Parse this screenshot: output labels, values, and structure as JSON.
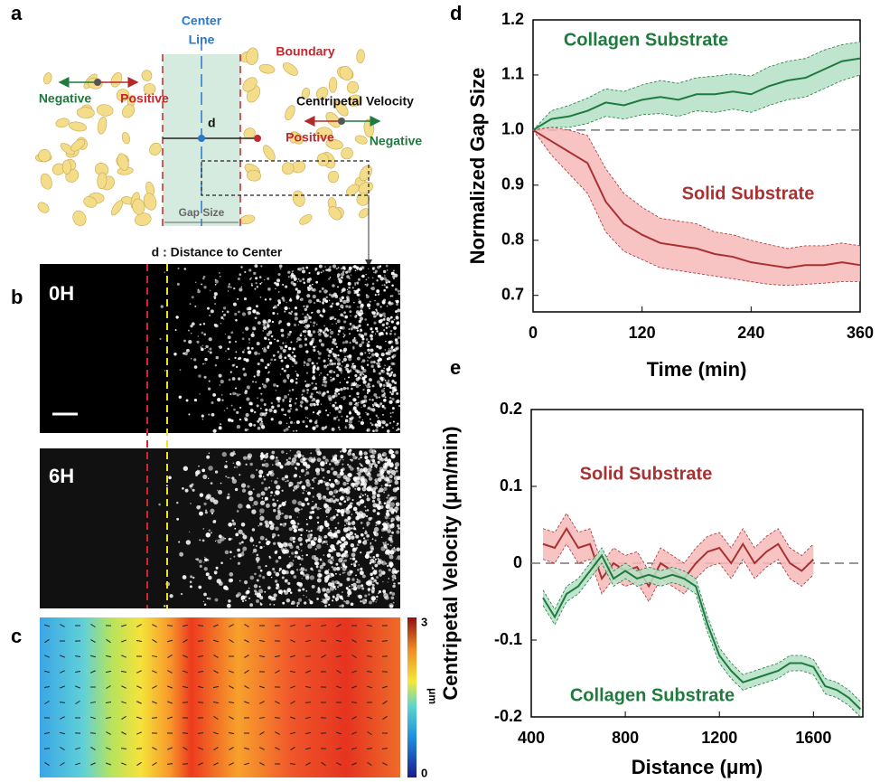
{
  "panels": {
    "a": "a",
    "b": "b",
    "c": "c",
    "d": "d",
    "e": "e"
  },
  "diagram": {
    "center_line": [
      "Center",
      "Line"
    ],
    "boundary": "Boundary",
    "negative_left": "Negative",
    "positive_left": "Positive",
    "centripetal_velocity": "Centripetal Velocity",
    "d": "d",
    "positive_right": "Positive",
    "negative_right": "Negative",
    "gap_size": "Gap Size",
    "distance_caption": "d : Distance to Center"
  },
  "images": {
    "top": "0H",
    "bottom": "6H"
  },
  "colorbar": {
    "ticks": [
      0,
      3
    ],
    "label": "μm"
  },
  "chart_data": [
    {
      "type": "line",
      "xlabel": "Time (min)",
      "ylabel": "Normalized Gap Size",
      "x": [
        0,
        20,
        40,
        60,
        80,
        100,
        120,
        140,
        160,
        180,
        200,
        220,
        240,
        260,
        280,
        300,
        320,
        340,
        360
      ],
      "xlim": [
        0,
        360
      ],
      "xticks": [
        0,
        120,
        240,
        360
      ],
      "ylim": [
        0.67,
        1.2
      ],
      "yticks": [
        0.7,
        0.8,
        0.9,
        {
          "value": 1,
          "label": "1.0"
        },
        1.1,
        1.2
      ],
      "reference_line": 1,
      "series": [
        {
          "name": "Collagen Substrate",
          "color": "#1f7a3e",
          "band_color": "#b5e0c6",
          "values": [
            1.0,
            1.02,
            1.025,
            1.035,
            1.05,
            1.045,
            1.055,
            1.06,
            1.055,
            1.065,
            1.065,
            1.07,
            1.065,
            1.08,
            1.09,
            1.095,
            1.11,
            1.125,
            1.13
          ],
          "lower": [
            1.0,
            1.005,
            1.005,
            1.012,
            1.025,
            1.02,
            1.028,
            1.03,
            1.025,
            1.035,
            1.032,
            1.038,
            1.032,
            1.045,
            1.055,
            1.06,
            1.075,
            1.09,
            1.1
          ],
          "upper": [
            1.0,
            1.035,
            1.045,
            1.058,
            1.075,
            1.07,
            1.082,
            1.09,
            1.085,
            1.095,
            1.098,
            1.102,
            1.098,
            1.115,
            1.125,
            1.13,
            1.145,
            1.155,
            1.16
          ]
        },
        {
          "name": "Solid Substrate",
          "color": "#a83232",
          "band_color": "#f6b8b8",
          "values": [
            1.0,
            0.98,
            0.96,
            0.94,
            0.87,
            0.83,
            0.81,
            0.795,
            0.79,
            0.785,
            0.775,
            0.77,
            0.76,
            0.755,
            0.75,
            0.755,
            0.755,
            0.76,
            0.755
          ],
          "lower": [
            1.0,
            0.955,
            0.92,
            0.885,
            0.815,
            0.78,
            0.765,
            0.75,
            0.745,
            0.74,
            0.735,
            0.73,
            0.725,
            0.72,
            0.718,
            0.72,
            0.722,
            0.725,
            0.725
          ],
          "upper": [
            1.0,
            1.005,
            1.0,
            0.99,
            0.93,
            0.885,
            0.86,
            0.84,
            0.835,
            0.83,
            0.815,
            0.81,
            0.8,
            0.792,
            0.785,
            0.79,
            0.79,
            0.795,
            0.79
          ]
        }
      ]
    },
    {
      "type": "line",
      "xlabel": "Distance (μm)",
      "ylabel": "Centripetal Velocity (μm/min)",
      "x": [
        450,
        500,
        550,
        600,
        650,
        700,
        750,
        800,
        850,
        900,
        950,
        1000,
        1050,
        1100,
        1150,
        1200,
        1250,
        1300,
        1350,
        1400,
        1450,
        1500,
        1550,
        1600,
        1650,
        1700,
        1750,
        1800
      ],
      "xlim": [
        400,
        1810
      ],
      "xticks": [
        400,
        800,
        1200,
        1600
      ],
      "ylim": [
        -0.2,
        0.2
      ],
      "yticks": [
        -0.2,
        -0.1,
        0,
        0.1,
        0.2
      ],
      "reference_line": 0,
      "series": [
        {
          "name": "Solid Substrate",
          "color": "#a83232",
          "band_color": "#f6b8b8",
          "values": [
            0.025,
            0.02,
            0.045,
            0.02,
            0.025,
            -0.02,
            0.0,
            -0.01,
            -0.005,
            -0.03,
            0.0,
            -0.01,
            -0.02,
            0.0,
            0.015,
            0.02,
            0.0,
            0.025,
            0.0,
            0.015,
            0.025,
            0.0,
            -0.01,
            0.005,
            null,
            null,
            null,
            null
          ],
          "lower": [
            0.005,
            0.0,
            0.025,
            0.0,
            0.005,
            -0.04,
            -0.02,
            -0.03,
            -0.025,
            -0.05,
            -0.02,
            -0.03,
            -0.04,
            -0.02,
            -0.005,
            0.0,
            -0.02,
            0.005,
            -0.02,
            -0.005,
            0.005,
            -0.02,
            -0.03,
            -0.015,
            null,
            null,
            null,
            null
          ],
          "upper": [
            0.045,
            0.04,
            0.065,
            0.04,
            0.045,
            0.0,
            0.02,
            0.01,
            0.015,
            -0.01,
            0.02,
            0.01,
            0.0,
            0.02,
            0.035,
            0.04,
            0.02,
            0.045,
            0.02,
            0.035,
            0.045,
            0.02,
            0.01,
            0.025,
            null,
            null,
            null,
            null
          ]
        },
        {
          "name": "Collagen Substrate",
          "color": "#1f7a3e",
          "band_color": "#b5e0c6",
          "values": [
            -0.045,
            -0.07,
            -0.04,
            -0.03,
            -0.01,
            0.01,
            -0.02,
            -0.01,
            -0.02,
            -0.015,
            -0.02,
            -0.015,
            -0.02,
            -0.03,
            -0.08,
            -0.12,
            -0.14,
            -0.155,
            -0.15,
            -0.145,
            -0.14,
            -0.13,
            -0.13,
            -0.135,
            -0.16,
            -0.165,
            -0.175,
            -0.19
          ],
          "lower": [
            -0.055,
            -0.08,
            -0.05,
            -0.04,
            -0.02,
            0.0,
            -0.03,
            -0.02,
            -0.03,
            -0.025,
            -0.03,
            -0.025,
            -0.03,
            -0.04,
            -0.09,
            -0.13,
            -0.15,
            -0.165,
            -0.16,
            -0.155,
            -0.15,
            -0.14,
            -0.14,
            -0.145,
            -0.17,
            -0.175,
            -0.185,
            -0.2
          ],
          "upper": [
            -0.035,
            -0.06,
            -0.03,
            -0.02,
            0.0,
            0.02,
            -0.01,
            0.0,
            -0.01,
            -0.005,
            -0.01,
            -0.005,
            -0.01,
            -0.02,
            -0.07,
            -0.11,
            -0.13,
            -0.145,
            -0.14,
            -0.135,
            -0.13,
            -0.12,
            -0.12,
            -0.125,
            -0.15,
            -0.155,
            -0.165,
            -0.18
          ]
        }
      ]
    }
  ]
}
